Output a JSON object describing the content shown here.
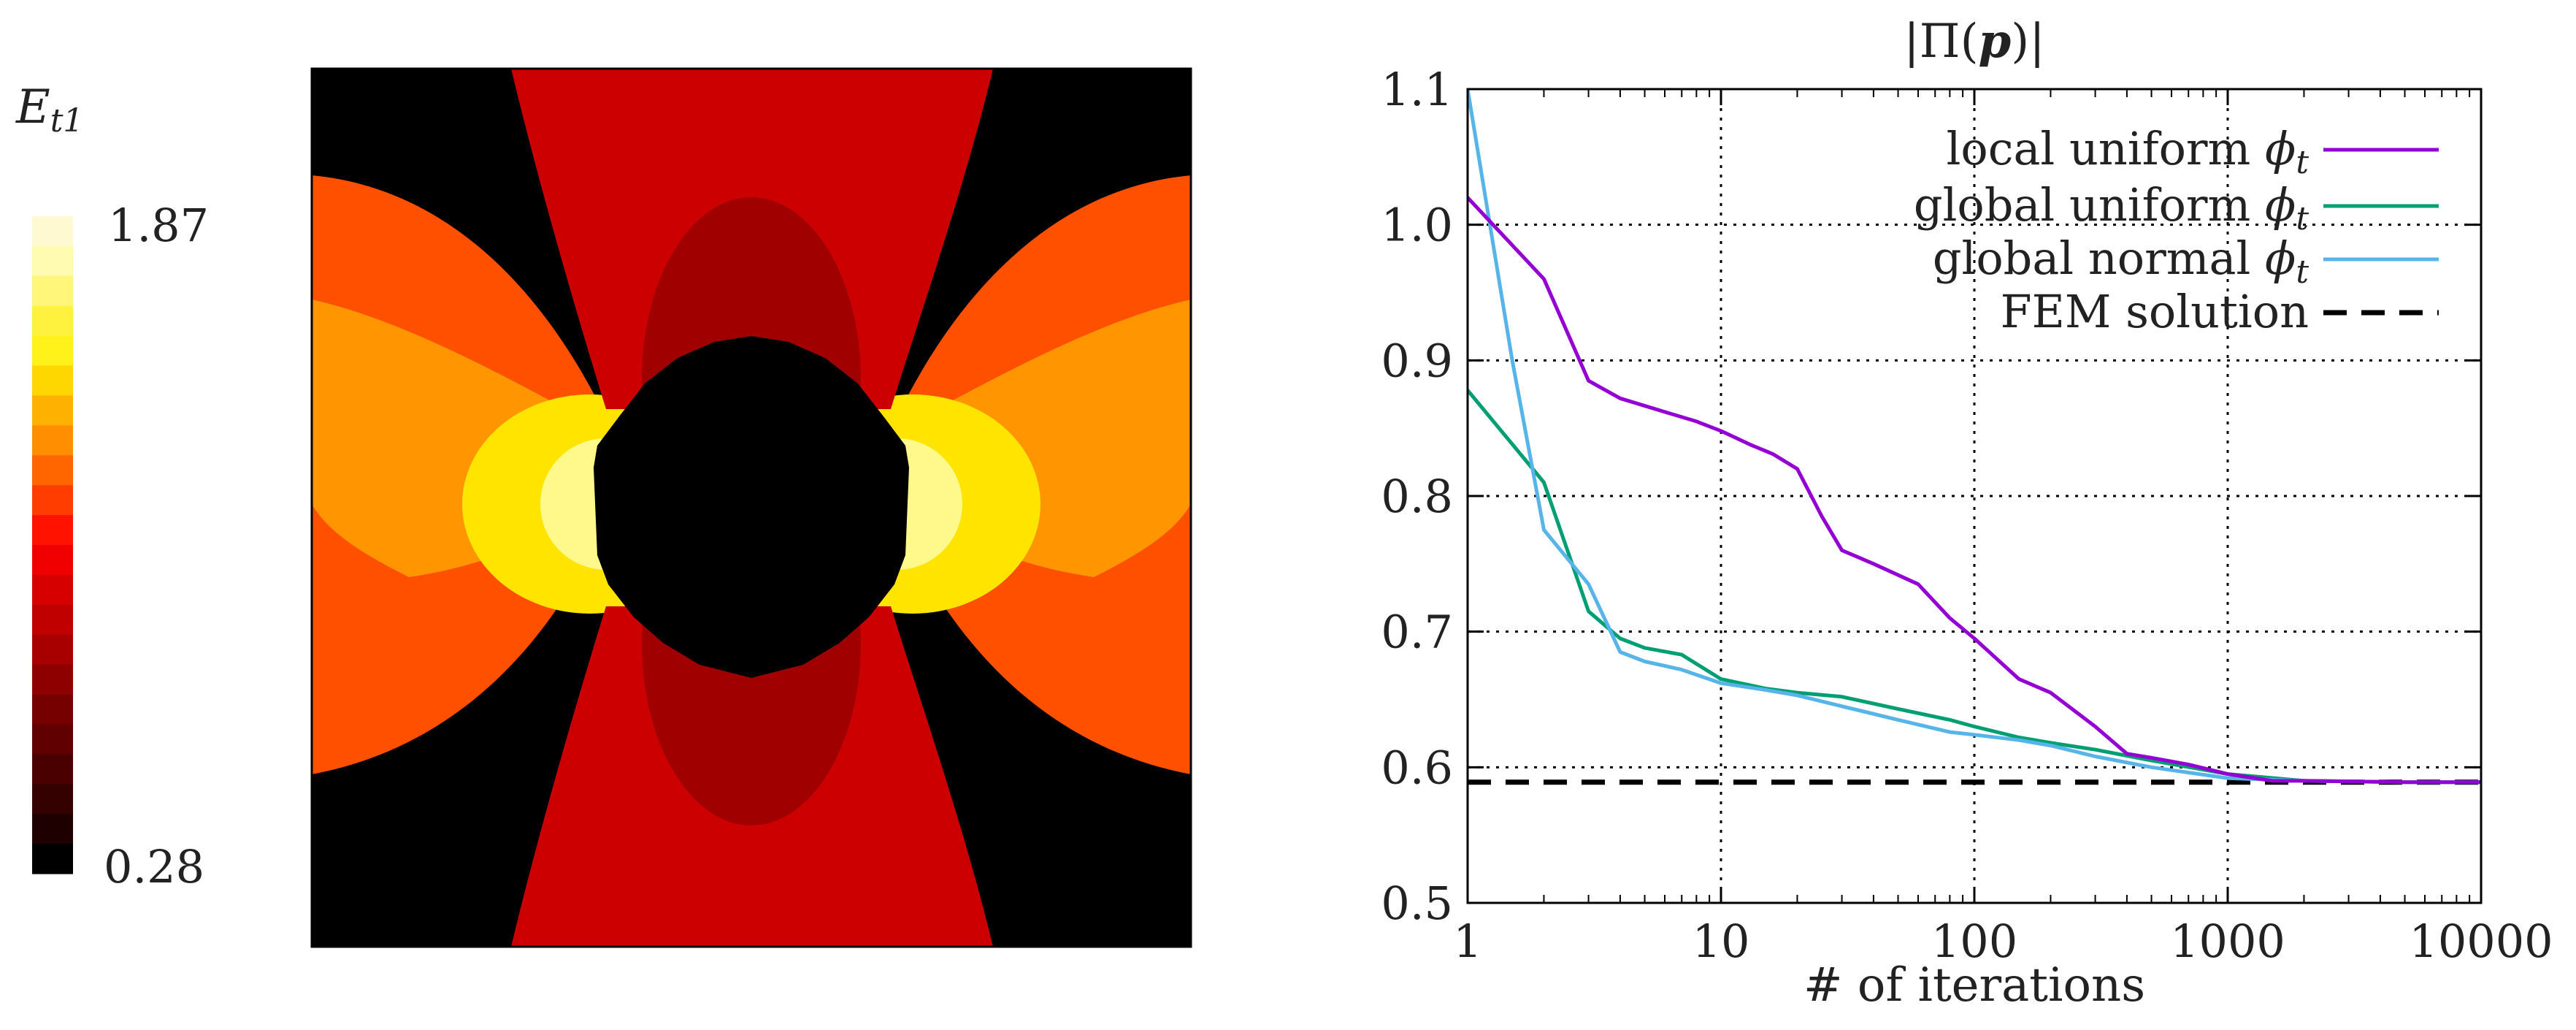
{
  "colorbar": {
    "label_main": "E",
    "label_sub": "t1",
    "max_label": "1.87",
    "min_label": "0.28",
    "levels": [
      "#fff9d2",
      "#fffbb0",
      "#fff67a",
      "#fff23e",
      "#fff21a",
      "#ffd700",
      "#ffb100",
      "#ff8f00",
      "#ff6600",
      "#ff3d00",
      "#ff1300",
      "#f00000",
      "#d60000",
      "#c00000",
      "#a80000",
      "#8e0000",
      "#760000",
      "#600000",
      "#4a0000",
      "#340000",
      "#1e0000",
      "#000000"
    ]
  },
  "field_plot": {
    "colors": {
      "background_red": "#ff1300",
      "orange_outer": "#ff5000",
      "orange": "#ff9500",
      "yellow": "#ffe400",
      "light_yellow": "#fff88a",
      "dark_red": "#cc0000",
      "darker_red": "#a00000",
      "hole": "#000000"
    }
  },
  "chart_data": {
    "type": "line",
    "title": "|Π(p)|",
    "xlabel": "# of iterations",
    "ylabel": "",
    "xscale": "log",
    "xlim": [
      1,
      10000
    ],
    "ylim": [
      0.5,
      1.1
    ],
    "xticks": [
      "1",
      "10",
      "100",
      "1000",
      "10000"
    ],
    "yticks": [
      "0.5",
      "0.6",
      "0.7",
      "0.8",
      "0.9",
      "1.0",
      "1.1"
    ],
    "grid": true,
    "legend_position": "top-right",
    "series": [
      {
        "name": "local uniform ϕt",
        "color": "#9400d3",
        "dash": "solid",
        "x": [
          1,
          2,
          3,
          4,
          6,
          8,
          10,
          13,
          16,
          20,
          25,
          30,
          40,
          60,
          80,
          100,
          150,
          200,
          300,
          400,
          500,
          700,
          1000,
          1500,
          2000,
          5000,
          10000
        ],
        "y": [
          1.02,
          0.96,
          0.885,
          0.872,
          0.862,
          0.855,
          0.848,
          0.838,
          0.831,
          0.82,
          0.785,
          0.76,
          0.75,
          0.735,
          0.71,
          0.695,
          0.665,
          0.655,
          0.63,
          0.61,
          0.607,
          0.602,
          0.595,
          0.59,
          0.59,
          0.589,
          0.589
        ]
      },
      {
        "name": "global uniform ϕt",
        "color": "#009e73",
        "dash": "solid",
        "x": [
          1,
          2,
          3,
          4,
          5,
          7,
          10,
          15,
          20,
          30,
          50,
          80,
          100,
          150,
          200,
          300,
          500,
          1000,
          2000,
          5000,
          10000
        ],
        "y": [
          0.878,
          0.81,
          0.715,
          0.695,
          0.688,
          0.683,
          0.665,
          0.658,
          0.655,
          0.652,
          0.643,
          0.635,
          0.63,
          0.622,
          0.618,
          0.613,
          0.605,
          0.595,
          0.59,
          0.589,
          0.589
        ]
      },
      {
        "name": "global normal ϕt",
        "color": "#56b4e9",
        "dash": "solid",
        "x": [
          1,
          1.5,
          2,
          3,
          4,
          5,
          7,
          10,
          15,
          20,
          30,
          50,
          80,
          100,
          150,
          200,
          300,
          500,
          1000,
          2000,
          5000,
          10000
        ],
        "y": [
          1.1,
          0.9,
          0.775,
          0.735,
          0.685,
          0.678,
          0.672,
          0.662,
          0.657,
          0.653,
          0.645,
          0.635,
          0.626,
          0.624,
          0.62,
          0.616,
          0.608,
          0.6,
          0.592,
          0.59,
          0.589,
          0.589
        ]
      },
      {
        "name": "FEM solution",
        "color": "#000000",
        "dash": "dashed",
        "x": [
          1,
          10000
        ],
        "y": [
          0.589,
          0.589
        ]
      }
    ]
  }
}
